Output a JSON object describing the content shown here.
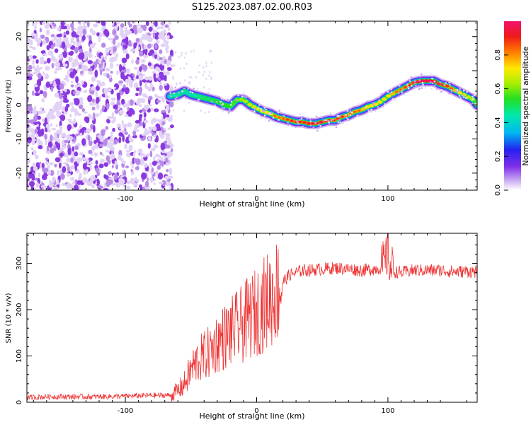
{
  "title": "S125.2023.087.02.00.R03",
  "chart_data": [
    {
      "type": "heatmap",
      "xlabel": "Height of straight line (km)",
      "ylabel": "Frequency (Hz)",
      "xlim": [
        -175,
        168
      ],
      "ylim": [
        -25,
        24.5
      ],
      "xticks": [
        -100,
        0,
        100
      ],
      "xtick_labels": [
        "-100",
        "0",
        "100"
      ],
      "yticks": [
        -20,
        -10,
        0,
        10,
        20
      ],
      "ytick_labels": [
        "-20",
        "-10",
        "0",
        "10",
        "20"
      ],
      "colorbar": {
        "label": "Normalized spectral amplitude",
        "range": [
          0,
          1
        ],
        "ticks": [
          0,
          0.2,
          0.4,
          0.6,
          0.8
        ],
        "tick_labels": [
          "0.0",
          "0.2",
          "0.4",
          "0.6",
          "0.8"
        ],
        "colormap": "rainbow"
      },
      "noise_region": {
        "x": [
          -175,
          -66
        ],
        "amplitude": 0.1
      },
      "ridge": {
        "x": [
          -66,
          -60,
          -55,
          -50,
          -45,
          -40,
          -35,
          -30,
          -25,
          -20,
          -15,
          -10,
          -5,
          0,
          5,
          10,
          15,
          20,
          25,
          30,
          35,
          40,
          45,
          50,
          55,
          60,
          65,
          70,
          75,
          80,
          85,
          90,
          95,
          100,
          105,
          110,
          115,
          120,
          125,
          130,
          135,
          140,
          145,
          150,
          155,
          160,
          165,
          168
        ],
        "frequency": [
          2.5,
          3,
          4,
          3,
          2.5,
          2,
          1.5,
          1,
          0,
          -0.5,
          1.5,
          1.5,
          0,
          -1,
          -2,
          -2.5,
          -3.5,
          -4,
          -4.5,
          -5,
          -5,
          -5.5,
          -5.5,
          -5,
          -4.5,
          -4.5,
          -3.5,
          -3,
          -2,
          -1.5,
          -0.5,
          0,
          1,
          2.5,
          3.5,
          4.5,
          5.5,
          6.5,
          7,
          7,
          7,
          6,
          5.5,
          4.5,
          3.5,
          2.5,
          1.5,
          0
        ],
        "amplitude": [
          0.45,
          0.5,
          0.45,
          0.45,
          0.5,
          0.55,
          0.55,
          0.6,
          0.6,
          0.6,
          0.65,
          0.7,
          0.75,
          0.75,
          0.8,
          0.8,
          0.85,
          0.85,
          0.9,
          0.9,
          0.9,
          0.95,
          0.95,
          0.95,
          0.9,
          0.9,
          0.9,
          0.85,
          0.85,
          0.85,
          0.8,
          0.8,
          0.8,
          0.8,
          0.85,
          0.85,
          0.9,
          0.95,
          1.0,
          1.0,
          1.0,
          0.95,
          0.9,
          0.85,
          0.8,
          0.75,
          0.7,
          0.65
        ]
      }
    },
    {
      "type": "line",
      "xlabel": "Height of straight line (km)",
      "ylabel": "SNR (10 * v/v)",
      "xlim": [
        -175,
        168
      ],
      "ylim": [
        0,
        365
      ],
      "xticks": [
        -100,
        0,
        100
      ],
      "xtick_labels": [
        "-100",
        "0",
        "100"
      ],
      "yticks": [
        0,
        100,
        200,
        300
      ],
      "ytick_labels": [
        "0",
        "100",
        "200",
        "300"
      ],
      "series": [
        {
          "color": "#ee3333",
          "x": [
            -175,
            -160,
            -140,
            -120,
            -100,
            -80,
            -65,
            -60,
            -55,
            -50,
            -45,
            -40,
            -35,
            -30,
            -25,
            -20,
            -15,
            -10,
            -5,
            0,
            5,
            10,
            15,
            20,
            25,
            30,
            35,
            40,
            50,
            60,
            70,
            80,
            90,
            95,
            98,
            100,
            102,
            105,
            110,
            120,
            130,
            140,
            150,
            160,
            168
          ],
          "y": [
            10,
            12,
            12,
            12,
            13,
            15,
            15,
            25,
            40,
            70,
            90,
            100,
            110,
            130,
            140,
            150,
            160,
            170,
            185,
            195,
            210,
            225,
            240,
            260,
            275,
            280,
            285,
            285,
            288,
            290,
            288,
            285,
            288,
            290,
            300,
            330,
            290,
            282,
            280,
            285,
            285,
            285,
            282,
            283,
            282
          ]
        }
      ]
    }
  ]
}
